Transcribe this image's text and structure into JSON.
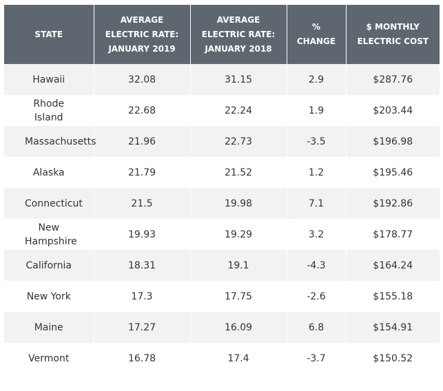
{
  "table": {
    "header": [
      "STATE",
      "AVERAGE ELECTRIC RATE: JANUARY 2019",
      "AVERAGE ELECTRIC RATE: JANUARY 2018",
      "% CHANGE",
      "$ MONTHLY ELECTRIC COST"
    ],
    "rows": [
      [
        "Hawaii",
        "32.08",
        "31.15",
        "2.9",
        "$287.76"
      ],
      [
        "Rhode Island",
        "22.68",
        "22.24",
        "1.9",
        "$203.44"
      ],
      [
        "Massachusetts",
        "21.96",
        "22.73",
        "-3.5",
        "$196.98"
      ],
      [
        "Alaska",
        "21.79",
        "21.52",
        "1.2",
        "$195.46"
      ],
      [
        "Connecticut",
        "21.5",
        "19.98",
        "7.1",
        "$192.86"
      ],
      [
        "New Hampshire",
        "19.93",
        "19.29",
        "3.2",
        "$178.77"
      ],
      [
        "California",
        "18.31",
        "19.1",
        "-4.3",
        "$164.24"
      ],
      [
        "New York",
        "17.3",
        "17.75",
        "-2.6",
        "$155.18"
      ],
      [
        "Maine",
        "17.27",
        "16.09",
        "6.8",
        "$154.91"
      ],
      [
        "Vermont",
        "16.78",
        "17.4",
        "-3.7",
        "$150.52"
      ]
    ]
  }
}
